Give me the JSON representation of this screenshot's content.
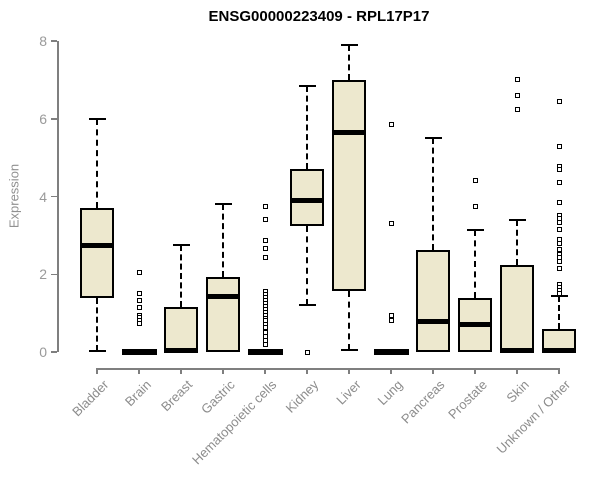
{
  "title": "ENSG00000223409 - RPL17P17",
  "y_axis": {
    "label": "Expression"
  },
  "colors": {
    "box_fill": "#EDE8CE",
    "box_line": "#000000",
    "axis": "#7F7F7F",
    "axis_text": "#9A9A9A",
    "title_text": "#000000"
  },
  "chart_data": {
    "type": "boxplot",
    "title": "ENSG00000223409 - RPL17P17",
    "xlabel": "",
    "ylabel": "Expression",
    "ylim": [
      0,
      8
    ],
    "yticks": [
      0,
      2,
      4,
      6,
      8
    ],
    "grid": false,
    "legend": "none",
    "categories": [
      "Bladder",
      "Brain",
      "Breast",
      "Gastric",
      "Hematopoietic cells",
      "Kidney",
      "Liver",
      "Lung",
      "Pancreas",
      "Prostate",
      "Skin",
      "Unknown / Other"
    ],
    "boxes": [
      {
        "name": "Bladder",
        "whisker_low": 0.02,
        "q1": 1.4,
        "median": 2.75,
        "q3": 3.7,
        "whisker_high": 6.0,
        "outliers": []
      },
      {
        "name": "Brain",
        "whisker_low": 0,
        "q1": 0,
        "median": 0,
        "q3": 0,
        "whisker_high": 0,
        "outliers": [
          2.05,
          1.5,
          1.33,
          1.15,
          0.95,
          0.88,
          0.8,
          0.74
        ]
      },
      {
        "name": "Breast",
        "whisker_low": 0,
        "q1": 0,
        "median": 0.03,
        "q3": 1.15,
        "whisker_high": 2.75,
        "outliers": []
      },
      {
        "name": "Gastric",
        "whisker_low": 0,
        "q1": 0,
        "median": 1.42,
        "q3": 1.93,
        "whisker_high": 3.8,
        "outliers": []
      },
      {
        "name": "Hematopoietic cells",
        "whisker_low": 0,
        "q1": 0,
        "median": 0,
        "q3": 0,
        "whisker_high": 0,
        "outliers": [
          3.75,
          3.42,
          2.88,
          2.65,
          2.43,
          1.55,
          1.47,
          1.4,
          1.32,
          1.25,
          1.17,
          1.1,
          1.02,
          0.95,
          0.87,
          0.8,
          0.72,
          0.62,
          0.5,
          0.4,
          0.3,
          0.2
        ]
      },
      {
        "name": "Kidney",
        "whisker_low": 1.2,
        "q1": 3.25,
        "median": 3.9,
        "q3": 4.7,
        "whisker_high": 6.85,
        "outliers": [
          0
        ]
      },
      {
        "name": "Liver",
        "whisker_low": 0.05,
        "q1": 1.57,
        "median": 5.64,
        "q3": 7.0,
        "whisker_high": 7.9,
        "outliers": []
      },
      {
        "name": "Lung",
        "whisker_low": 0,
        "q1": 0,
        "median": 0,
        "q3": 0,
        "whisker_high": 0,
        "outliers": [
          5.85,
          3.3,
          0.95,
          0.8
        ]
      },
      {
        "name": "Pancreas",
        "whisker_low": 0,
        "q1": 0,
        "median": 0.78,
        "q3": 2.63,
        "whisker_high": 5.5,
        "outliers": []
      },
      {
        "name": "Prostate",
        "whisker_low": 0,
        "q1": 0,
        "median": 0.7,
        "q3": 1.38,
        "whisker_high": 3.15,
        "outliers": [
          4.4,
          3.75
        ]
      },
      {
        "name": "Skin",
        "whisker_low": 0,
        "q1": 0,
        "median": 0.03,
        "q3": 2.25,
        "whisker_high": 3.4,
        "outliers": [
          7.0,
          6.6,
          6.25
        ]
      },
      {
        "name": "Unknown / Other",
        "whisker_low": 0,
        "q1": 0,
        "median": 0.03,
        "q3": 0.6,
        "whisker_high": 1.45,
        "outliers": [
          6.45,
          5.28,
          4.76,
          4.7,
          4.35,
          3.85,
          3.52,
          3.43,
          3.33,
          3.15,
          2.9,
          2.78,
          2.63,
          2.52,
          2.43,
          2.33,
          2.15,
          1.73,
          1.65,
          1.57,
          1.5
        ]
      }
    ]
  }
}
